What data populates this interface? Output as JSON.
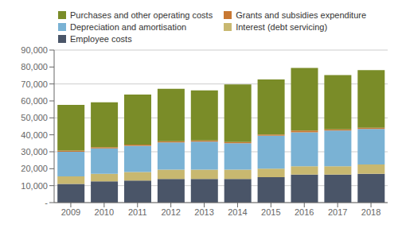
{
  "chart_data": {
    "type": "bar",
    "stacked": true,
    "categories": [
      "2009",
      "2010",
      "2011",
      "2012",
      "2013",
      "2014",
      "2015",
      "2016",
      "2017",
      "2018"
    ],
    "series": [
      {
        "name": "Employee costs",
        "color": "#4a5568",
        "values": [
          11000,
          12500,
          13000,
          14000,
          14000,
          14000,
          15000,
          16500,
          16500,
          17000
        ]
      },
      {
        "name": "Interest (debt servicing)",
        "color": "#c8b870",
        "values": [
          4500,
          4500,
          5000,
          5500,
          5500,
          5500,
          5000,
          5000,
          5000,
          5500
        ]
      },
      {
        "name": "Depreciation and amortisation",
        "color": "#7ab2d4",
        "values": [
          14500,
          15000,
          15500,
          16000,
          16500,
          15500,
          19500,
          20000,
          21000,
          21000
        ]
      },
      {
        "name": "Grants and subsidies expenditure",
        "color": "#c87832",
        "values": [
          700,
          700,
          700,
          700,
          700,
          700,
          700,
          1000,
          700,
          700
        ]
      },
      {
        "name": "Purchases and other operating costs",
        "color": "#7a8c28",
        "values": [
          27000,
          26500,
          29500,
          31000,
          29500,
          34000,
          32500,
          37000,
          32000,
          34000
        ]
      }
    ],
    "ylim": [
      0,
      90000
    ],
    "yticks": [
      {
        "value": 0,
        "label": "-"
      },
      {
        "value": 10000,
        "label": "10,000"
      },
      {
        "value": 20000,
        "label": "20,000"
      },
      {
        "value": 30000,
        "label": "30,000"
      },
      {
        "value": 40000,
        "label": "40,000"
      },
      {
        "value": 50000,
        "label": "50,000"
      },
      {
        "value": 60000,
        "label": "60,000"
      },
      {
        "value": 70000,
        "label": "70,000"
      },
      {
        "value": 80000,
        "label": "80,000"
      },
      {
        "value": 90000,
        "label": "90,000"
      }
    ],
    "grid": true,
    "legend": "upper left"
  }
}
